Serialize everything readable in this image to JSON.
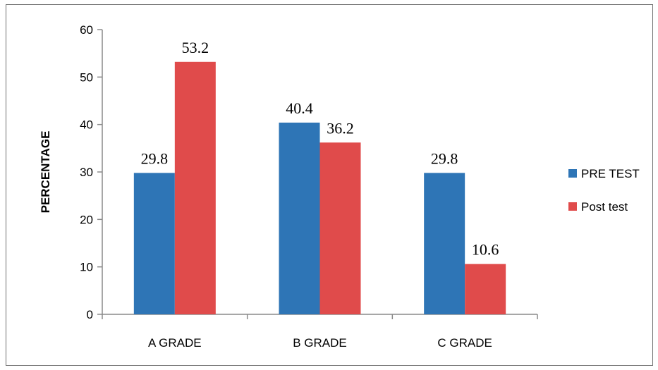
{
  "chart_data": {
    "type": "bar",
    "title": "",
    "xlabel": "",
    "ylabel": "PERCENTAGE",
    "categories": [
      "A GRADE",
      "B GRADE",
      "C GRADE"
    ],
    "series": [
      {
        "name": "PRE TEST",
        "values": [
          29.8,
          40.4,
          29.8
        ],
        "color": "#2e75b6"
      },
      {
        "name": "Post test",
        "values": [
          53.2,
          36.2,
          10.6
        ],
        "color": "#e04b4b"
      }
    ],
    "ylim": [
      0,
      60
    ],
    "yticks": [
      0,
      10,
      20,
      30,
      40,
      50,
      60
    ],
    "grid": false,
    "legend_position": "right"
  }
}
